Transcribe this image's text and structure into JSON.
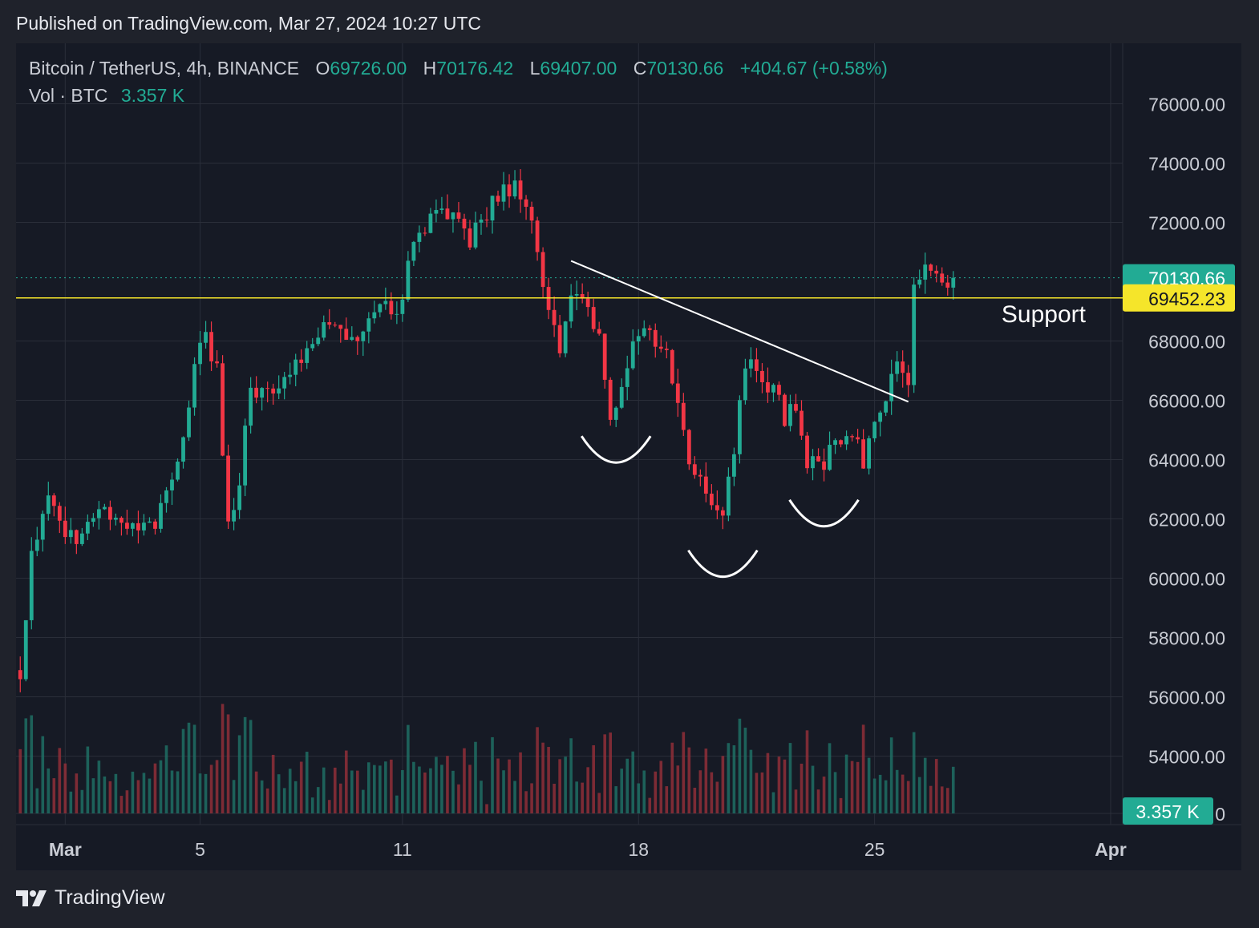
{
  "published": "Published on TradingView.com, Mar 27, 2024 10:27 UTC",
  "legend": {
    "symbol": "Bitcoin / TetherUS, 4h, BINANCE",
    "o_label": "O",
    "o_value": "69726.00",
    "h_label": "H",
    "h_value": "70176.42",
    "l_label": "L",
    "l_value": "69407.00",
    "c_label": "C",
    "c_value": "70130.66",
    "change": "+404.67 (+0.58%)",
    "vol_label": "Vol · BTC",
    "vol_value": "3.357 K"
  },
  "footer": {
    "brand": "TradingView"
  },
  "colors": {
    "up": "#22ab94",
    "down": "#f23645",
    "support": "#f5e52a",
    "background": "#161a25"
  },
  "chart_data": {
    "type": "candlestick",
    "interval": "4h",
    "yticks": [
      "76000.00",
      "74000.00",
      "72000.00",
      "68000.00",
      "66000.00",
      "64000.00",
      "62000.00",
      "60000.00",
      "58000.00",
      "56000.00",
      "54000.00"
    ],
    "volume_axis_label": "0",
    "xticks": [
      {
        "label": "Mar",
        "value": "2024-03-01"
      },
      {
        "label": "5",
        "value": "2024-03-05"
      },
      {
        "label": "11",
        "value": "2024-03-11"
      },
      {
        "label": "18",
        "value": "2024-03-18"
      },
      {
        "label": "25",
        "value": "2024-03-25"
      },
      {
        "label": "Apr",
        "value": "2024-04-01"
      }
    ],
    "ylim": [
      52500,
      77500
    ],
    "xlim": [
      "2024-02-28T13:00",
      "2024-04-01T00:00"
    ],
    "last_price": {
      "label": "70130.66",
      "value": 70130.66
    },
    "volume_last": {
      "label": "3.357 K"
    },
    "support": {
      "label": "69452.23",
      "value": 69452.23,
      "text": "Support"
    },
    "trendline": {
      "from": {
        "time": "2024-03-16T00:00",
        "price": 70700
      },
      "to": {
        "time": "2024-03-26T00:00",
        "price": 65950
      }
    },
    "arcs": [
      {
        "time": "2024-03-17T08:00",
        "price": 63900
      },
      {
        "time": "2024-03-20T12:00",
        "price": 60050
      },
      {
        "time": "2024-03-23T12:00",
        "price": 61750
      }
    ],
    "grid": true,
    "path": [
      {
        "t": "2024-02-28T16:00",
        "p": 56900
      },
      {
        "t": "2024-02-29T00:00",
        "p": 60700
      },
      {
        "t": "2024-02-29T12:00",
        "p": 62700
      },
      {
        "t": "2024-03-01T00:00",
        "p": 61200
      },
      {
        "t": "2024-03-01T12:00",
        "p": 61600
      },
      {
        "t": "2024-03-02T04:00",
        "p": 62200
      },
      {
        "t": "2024-03-02T20:00",
        "p": 61700
      },
      {
        "t": "2024-03-03T16:00",
        "p": 61700
      },
      {
        "t": "2024-03-04T08:00",
        "p": 63800
      },
      {
        "t": "2024-03-04T20:00",
        "p": 67100
      },
      {
        "t": "2024-03-05T04:00",
        "p": 68400
      },
      {
        "t": "2024-03-05T12:00",
        "p": 66900
      },
      {
        "t": "2024-03-05T16:00",
        "p": 64100
      },
      {
        "t": "2024-03-05T20:00",
        "p": 61800
      },
      {
        "t": "2024-03-06T04:00",
        "p": 63200
      },
      {
        "t": "2024-03-06T12:00",
        "p": 66600
      },
      {
        "t": "2024-03-07T00:00",
        "p": 66100
      },
      {
        "t": "2024-03-07T16:00",
        "p": 67000
      },
      {
        "t": "2024-03-08T08:00",
        "p": 67600
      },
      {
        "t": "2024-03-08T16:00",
        "p": 68300
      },
      {
        "t": "2024-03-09T04:00",
        "p": 68200
      },
      {
        "t": "2024-03-09T20:00",
        "p": 68200
      },
      {
        "t": "2024-03-10T12:00",
        "p": 69300
      },
      {
        "t": "2024-03-10T20:00",
        "p": 68600
      },
      {
        "t": "2024-03-11T04:00",
        "p": 70400
      },
      {
        "t": "2024-03-11T12:00",
        "p": 71700
      },
      {
        "t": "2024-03-12T00:00",
        "p": 72300
      },
      {
        "t": "2024-03-12T08:00",
        "p": 72400
      },
      {
        "t": "2024-03-12T16:00",
        "p": 72000
      },
      {
        "t": "2024-03-13T00:00",
        "p": 71400
      },
      {
        "t": "2024-03-13T12:00",
        "p": 72300
      },
      {
        "t": "2024-03-13T20:00",
        "p": 73000
      },
      {
        "t": "2024-03-14T08:00",
        "p": 73300
      },
      {
        "t": "2024-03-14T16:00",
        "p": 72800
      },
      {
        "t": "2024-03-15T00:00",
        "p": 70700
      },
      {
        "t": "2024-03-15T08:00",
        "p": 69000
      },
      {
        "t": "2024-03-15T16:00",
        "p": 67800
      },
      {
        "t": "2024-03-16T00:00",
        "p": 69200
      },
      {
        "t": "2024-03-16T12:00",
        "p": 69300
      },
      {
        "t": "2024-03-16T20:00",
        "p": 68200
      },
      {
        "t": "2024-03-17T04:00",
        "p": 65400
      },
      {
        "t": "2024-03-17T12:00",
        "p": 66100
      },
      {
        "t": "2024-03-17T20:00",
        "p": 67900
      },
      {
        "t": "2024-03-18T08:00",
        "p": 68400
      },
      {
        "t": "2024-03-18T20:00",
        "p": 67400
      },
      {
        "t": "2024-03-19T04:00",
        "p": 66200
      },
      {
        "t": "2024-03-19T12:00",
        "p": 63800
      },
      {
        "t": "2024-03-19T20:00",
        "p": 63300
      },
      {
        "t": "2024-03-20T04:00",
        "p": 62700
      },
      {
        "t": "2024-03-20T12:00",
        "p": 62000
      },
      {
        "t": "2024-03-20T20:00",
        "p": 64500
      },
      {
        "t": "2024-03-21T04:00",
        "p": 67400
      },
      {
        "t": "2024-03-21T12:00",
        "p": 66700
      },
      {
        "t": "2024-03-22T00:00",
        "p": 66500
      },
      {
        "t": "2024-03-22T08:00",
        "p": 65300
      },
      {
        "t": "2024-03-22T16:00",
        "p": 65900
      },
      {
        "t": "2024-03-23T00:00",
        "p": 64000
      },
      {
        "t": "2024-03-23T08:00",
        "p": 63600
      },
      {
        "t": "2024-03-23T16:00",
        "p": 64200
      },
      {
        "t": "2024-03-24T00:00",
        "p": 64800
      },
      {
        "t": "2024-03-24T08:00",
        "p": 64900
      },
      {
        "t": "2024-03-24T16:00",
        "p": 64000
      },
      {
        "t": "2024-03-25T00:00",
        "p": 65400
      },
      {
        "t": "2024-03-25T08:00",
        "p": 66200
      },
      {
        "t": "2024-03-25T16:00",
        "p": 67200
      },
      {
        "t": "2024-03-26T00:00",
        "p": 66800
      },
      {
        "t": "2024-03-26T04:00",
        "p": 69900
      },
      {
        "t": "2024-03-26T12:00",
        "p": 70500
      },
      {
        "t": "2024-03-26T20:00",
        "p": 70400
      },
      {
        "t": "2024-03-27T04:00",
        "p": 69800
      },
      {
        "t": "2024-03-27T08:00",
        "p": 70130.66
      }
    ]
  }
}
